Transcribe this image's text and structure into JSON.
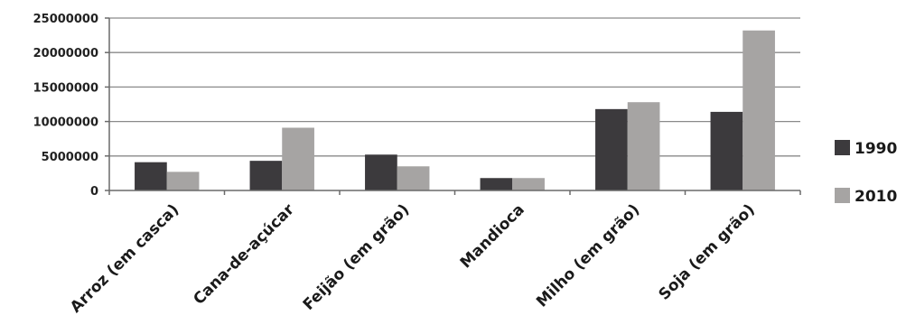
{
  "chart_data": {
    "type": "bar",
    "title": "",
    "xlabel": "",
    "ylabel": "",
    "categories": [
      "Arroz (em casca)",
      "Cana-de-açúcar",
      "Feijão (em grão)",
      "Mandioca",
      "Milho (em grão)",
      "Soja (em grão)"
    ],
    "series": [
      {
        "name": "1990",
        "color": "#3c3a3d",
        "values": [
          4100000,
          4300000,
          5200000,
          1800000,
          11800000,
          11400000
        ]
      },
      {
        "name": "2010",
        "color": "#a6a4a3",
        "values": [
          2700000,
          9100000,
          3500000,
          1800000,
          12800000,
          23200000
        ]
      }
    ],
    "y_ticks": [
      "0",
      "5000000",
      "10000000",
      "15000000",
      "20000000",
      "25000000"
    ],
    "ylim": [
      0,
      25000000
    ],
    "grid": true,
    "legend_position": "right"
  }
}
